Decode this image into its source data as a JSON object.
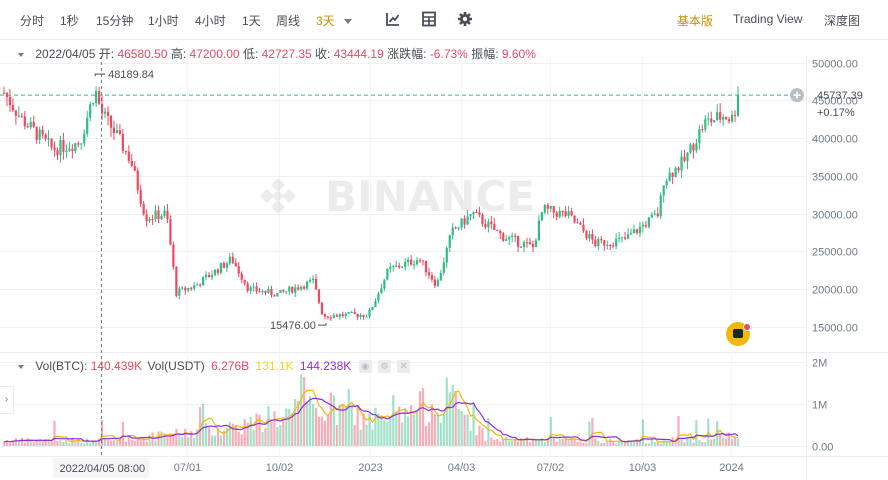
{
  "toolbar": {
    "intervals": [
      "分时",
      "1秒",
      "15分钟",
      "1小时",
      "4小时",
      "1天",
      "周线",
      "3天"
    ],
    "active_interval": "3天",
    "icons": [
      "indicator-icon",
      "layout-icon",
      "settings-icon"
    ],
    "views": [
      "基本版",
      "Trading View",
      "深度图"
    ],
    "active_view": "基本版"
  },
  "info": {
    "date": "2022/04/05",
    "open_label": "开:",
    "open": "46580.50",
    "high_label": "高:",
    "high": "47200.00",
    "low_label": "低:",
    "low": "42727.35",
    "close_label": "收:",
    "close": "43444.19",
    "change_label": "涨跌幅:",
    "change": "-6.73%",
    "amplitude_label": "振幅:",
    "amplitude": "9.60%"
  },
  "volume_info": {
    "btc_label": "Vol(BTC):",
    "btc": "140.439K",
    "usdt_label": "Vol(USDT)",
    "usdt": "6.276B",
    "ma1": "131.1K",
    "ma2": "144.238K"
  },
  "watermark": "BINANCE",
  "price_axis": [
    "50000.00",
    "45000.00",
    "40000.00",
    "35000.00",
    "30000.00",
    "25000.00",
    "20000.00",
    "15000.00"
  ],
  "volume_axis": [
    "2M",
    "1M",
    "0.00"
  ],
  "time_axis": [
    "07/01",
    "10/02",
    "2023",
    "04/03",
    "07/02",
    "10/03",
    "2024"
  ],
  "crosshair_time": "2022/04/05 08:00",
  "current_price": "45737.39",
  "current_change": "+0.17%",
  "annotations": {
    "max": "48189.84",
    "min": "15476.00"
  },
  "colors": {
    "up": "#2ebd85",
    "down": "#f6465d",
    "accent": "#c99400",
    "ma1": "#f0b90b",
    "ma2": "#8e2de2"
  },
  "chart_data": {
    "type": "candlestick",
    "ylim": [
      13000,
      52000
    ],
    "y_ticks": [
      50000,
      45000,
      40000,
      35000,
      30000,
      25000,
      20000,
      15000
    ],
    "x_ticks": [
      "07/01",
      "10/02",
      "2023",
      "04/03",
      "07/02",
      "10/03",
      "2024"
    ],
    "close_path": [
      [
        "2021-12-28",
        46000
      ],
      [
        "2022-01-15",
        42500
      ],
      [
        "2022-02-15",
        38500
      ],
      [
        "2022-03-15",
        39500
      ],
      [
        "2022-03-30",
        46500
      ],
      [
        "2022-04-05",
        43444
      ],
      [
        "2022-04-20",
        40500
      ],
      [
        "2022-05-05",
        37000
      ],
      [
        "2022-05-20",
        29500
      ],
      [
        "2022-06-10",
        30000
      ],
      [
        "2022-06-20",
        19500
      ],
      [
        "2022-07-10",
        20500
      ],
      [
        "2022-08-15",
        24000
      ],
      [
        "2022-09-01",
        20000
      ],
      [
        "2022-10-01",
        19300
      ],
      [
        "2022-11-05",
        21000
      ],
      [
        "2022-11-15",
        16500
      ],
      [
        "2022-12-31",
        16600
      ],
      [
        "2023-01-20",
        22500
      ],
      [
        "2023-02-20",
        24000
      ],
      [
        "2023-03-10",
        20500
      ],
      [
        "2023-03-25",
        27500
      ],
      [
        "2023-04-15",
        30000
      ],
      [
        "2023-05-15",
        27000
      ],
      [
        "2023-06-15",
        25500
      ],
      [
        "2023-06-25",
        30500
      ],
      [
        "2023-07-20",
        29800
      ],
      [
        "2023-08-17",
        26000
      ],
      [
        "2023-09-15",
        26500
      ],
      [
        "2023-10-20",
        30000
      ],
      [
        "2023-10-25",
        34500
      ],
      [
        "2023-11-15",
        37000
      ],
      [
        "2023-12-05",
        42000
      ],
      [
        "2023-12-25",
        43000
      ],
      [
        "2024-01-03",
        42500
      ],
      [
        "2024-01-08",
        45737
      ]
    ],
    "volume_levels": [
      [
        "2022-04-15",
        0.12
      ],
      [
        "2022-06-15",
        0.25
      ],
      [
        "2022-09-15",
        0.55
      ],
      [
        "2022-11-10",
        0.9
      ],
      [
        "2023-01-15",
        0.5
      ],
      [
        "2023-03-20",
        1.1
      ],
      [
        "2023-05-01",
        0.15
      ],
      [
        "2023-10-01",
        0.1
      ],
      [
        "2024-01-05",
        0.2
      ]
    ]
  }
}
